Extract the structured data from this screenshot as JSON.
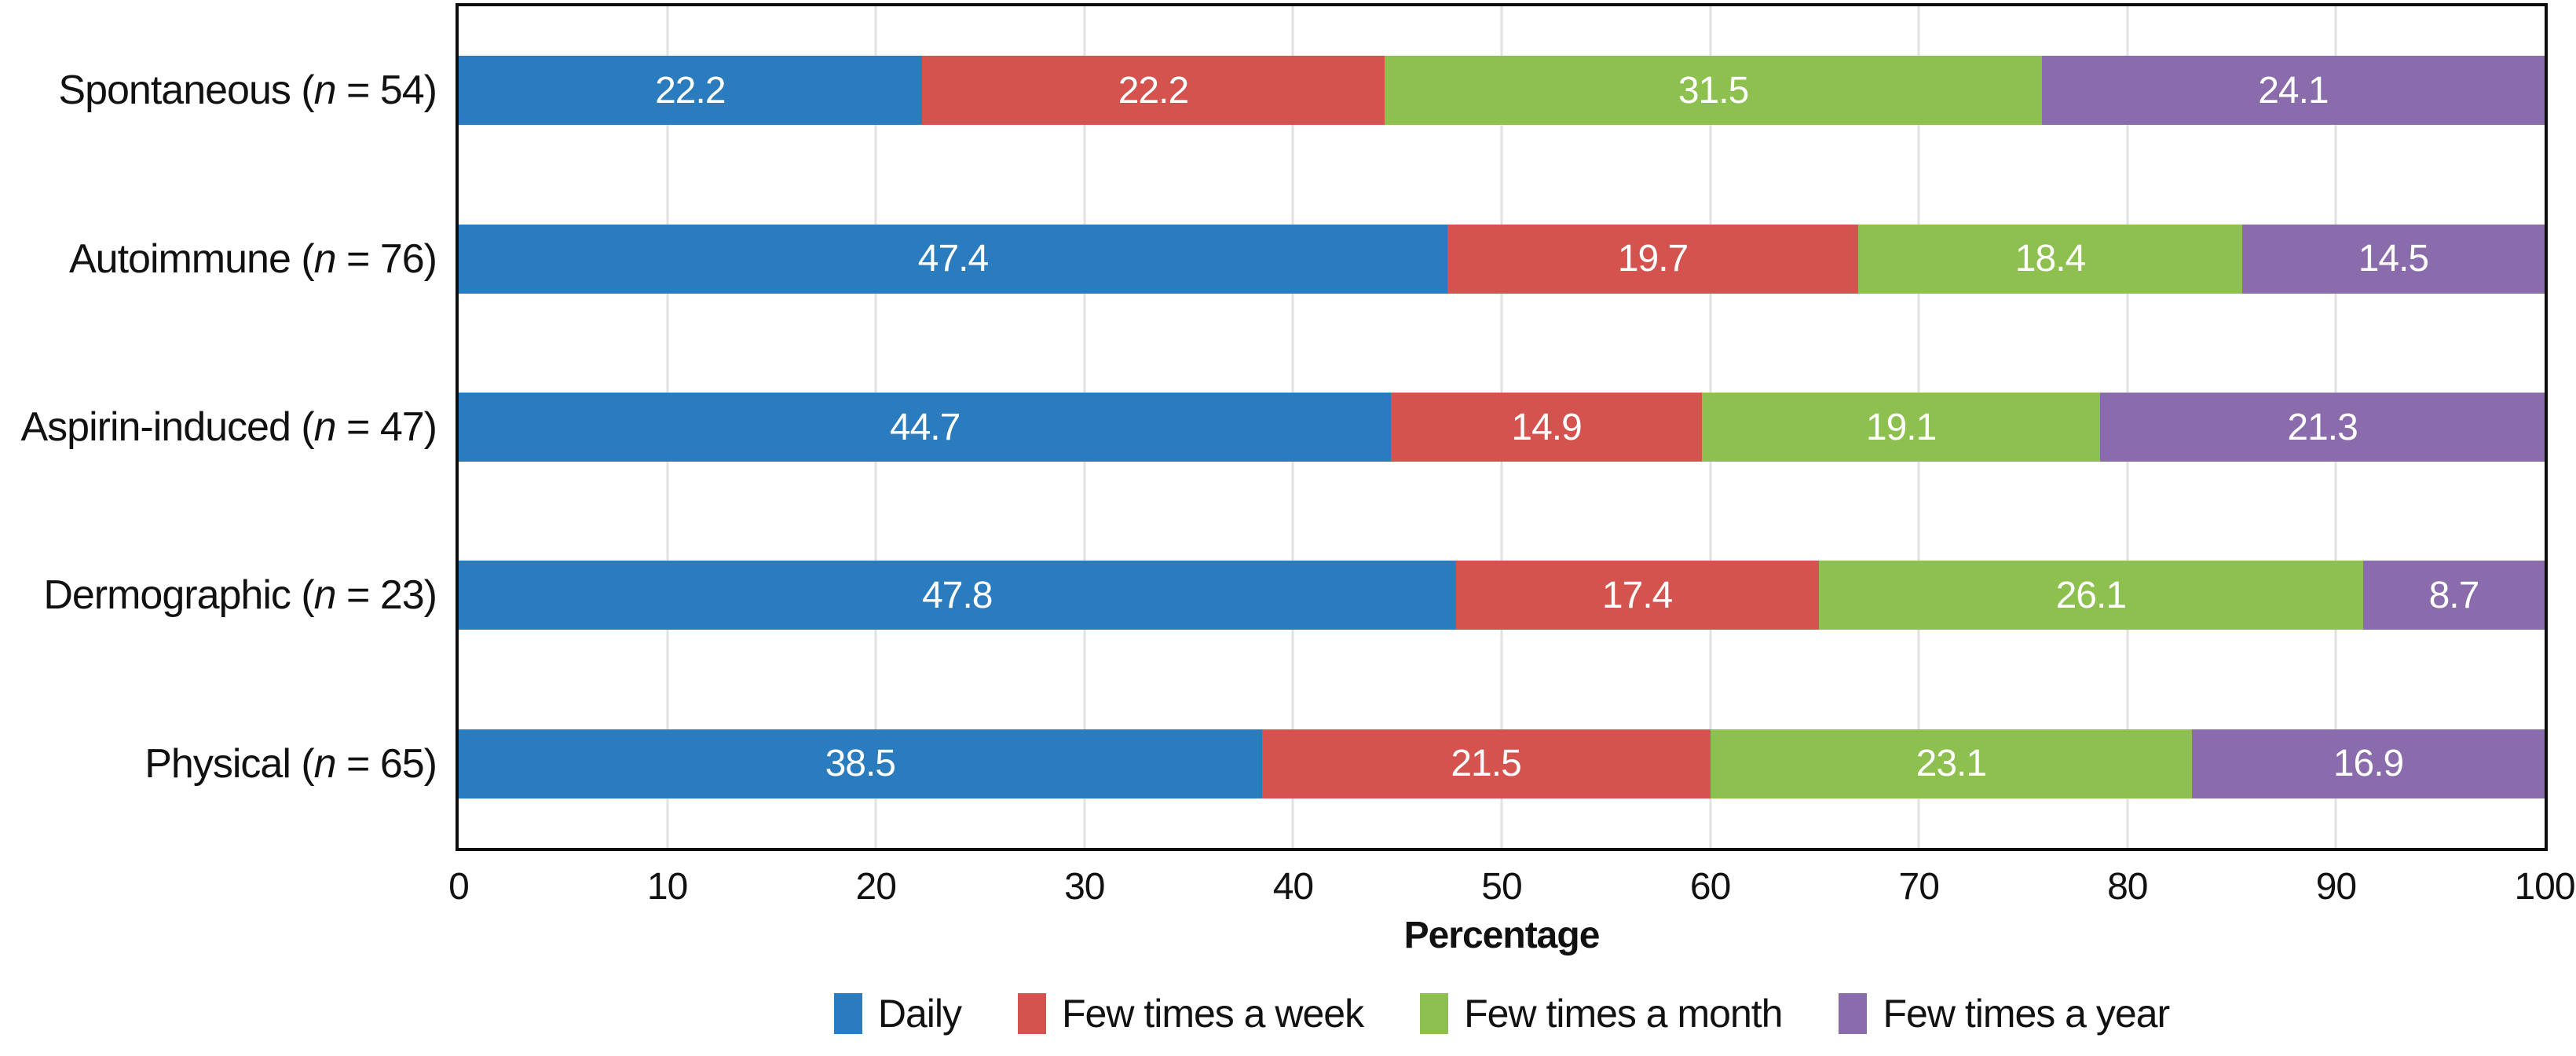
{
  "chart_data": {
    "type": "bar",
    "orientation": "horizontal",
    "stacked": true,
    "title": "",
    "xlabel": "Percentage",
    "n_symbol": "n",
    "x_axis": {
      "min": 0,
      "max": 100,
      "ticks": [
        0,
        10,
        20,
        30,
        40,
        50,
        60,
        70,
        80,
        90,
        100
      ]
    },
    "grid": "vertical",
    "gridline_color": "#e2e2e2",
    "plot_border_color": "#0e0e0e",
    "value_label_color": "#ffffff",
    "legend_position": "bottom-center",
    "categories": [
      {
        "name": "Spontaneous",
        "n": 54,
        "label": "Spontaneous (n = 54)"
      },
      {
        "name": "Autoimmune",
        "n": 76,
        "label": "Autoimmune (n = 76)"
      },
      {
        "name": "Aspirin-induced",
        "n": 47,
        "label": "Aspirin-induced (n = 47)"
      },
      {
        "name": "Dermographic",
        "n": 23,
        "label": "Dermographic (n = 23)"
      },
      {
        "name": "Physical",
        "n": 65,
        "label": "Physical (n = 65)"
      }
    ],
    "series": [
      {
        "name": "Daily",
        "color": "#2b7cbe",
        "values": [
          22.2,
          47.4,
          44.7,
          47.8,
          38.5
        ]
      },
      {
        "name": "Few times a week",
        "color": "#d4534f",
        "values": [
          22.2,
          19.7,
          14.9,
          17.4,
          21.5
        ]
      },
      {
        "name": "Few times a month",
        "color": "#8dc04e",
        "values": [
          31.5,
          18.4,
          19.1,
          26.1,
          23.1
        ]
      },
      {
        "name": "Few times a year",
        "color": "#8a6bab",
        "values": [
          24.1,
          14.5,
          21.3,
          8.7,
          16.9
        ]
      }
    ]
  }
}
